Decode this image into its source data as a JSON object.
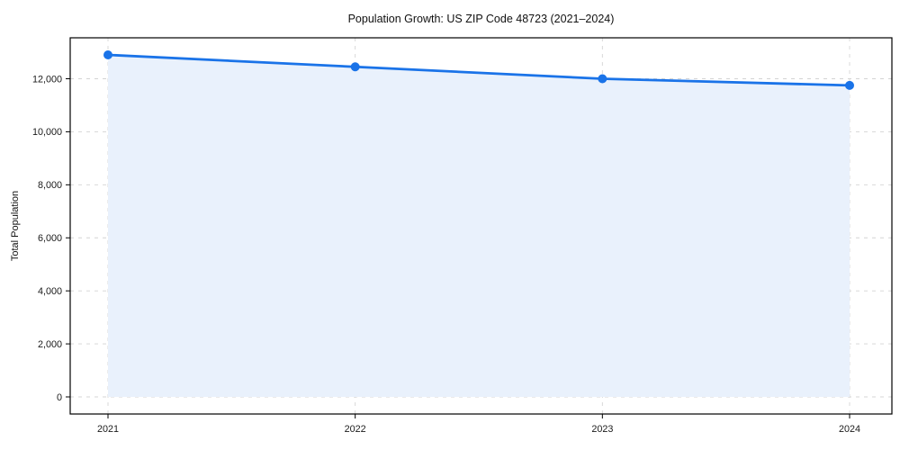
{
  "chart_data": {
    "type": "area",
    "title": "Population Growth: US ZIP Code 48723 (2021–2024)",
    "xlabel": "",
    "ylabel": "Total Population",
    "categories": [
      "2021",
      "2022",
      "2023",
      "2024"
    ],
    "values": [
      12900,
      12450,
      12000,
      11750
    ],
    "series": [
      {
        "name": "Total Population",
        "values": [
          12900,
          12450,
          12000,
          11750
        ]
      }
    ],
    "y_ticks": {
      "values": [
        0,
        2000,
        4000,
        6000,
        8000,
        10000,
        12000
      ],
      "labels": [
        "0",
        "2,000",
        "4,000",
        "6,000",
        "8,000",
        "10,000",
        "12,000"
      ]
    },
    "ylim": [
      -645,
      13545
    ],
    "grid": {
      "visible": true,
      "style": "dashed"
    },
    "legend": {
      "visible": false
    },
    "marker": "circle",
    "colors": {
      "line": "#1a73e8",
      "marker": "#1a73e8",
      "fill": "#e9f1fc",
      "grid": "#d4d4d4",
      "spine": "#000000",
      "text": "#1a1a1a"
    }
  }
}
